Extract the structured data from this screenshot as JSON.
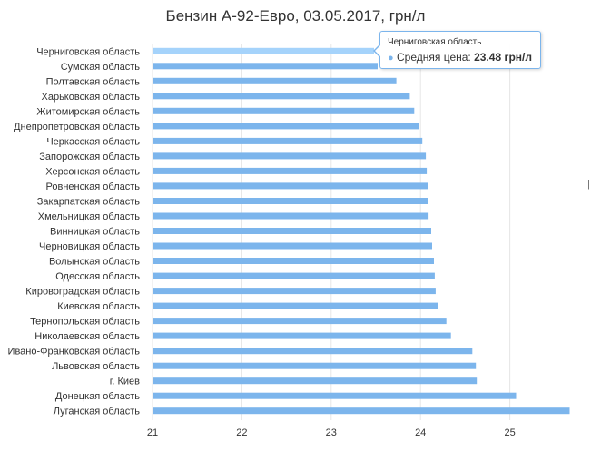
{
  "chart_data": {
    "type": "bar",
    "orientation": "horizontal",
    "title": "Бензин А-92-Евро, 03.05.2017, грн/л",
    "categories": [
      "Черниговская область",
      "Сумская область",
      "Полтавская область",
      "Харьковская область",
      "Житомирская область",
      "Днепропетровская область",
      "Черкасская область",
      "Запорожская область",
      "Херсонская область",
      "Ровненская область",
      "Закарпатская область",
      "Хмельницкая область",
      "Винницкая область",
      "Черновицкая область",
      "Волынская область",
      "Одесская область",
      "Кировоградская область",
      "Киевская область",
      "Тернопольская область",
      "Николаевская область",
      "Ивано-Франковская область",
      "Львовская область",
      "г. Киев",
      "Донецкая область",
      "Луганская область"
    ],
    "series": [
      {
        "name": "Средняя цена",
        "values": [
          23.48,
          23.52,
          23.73,
          23.88,
          23.93,
          23.98,
          24.02,
          24.06,
          24.07,
          24.08,
          24.08,
          24.09,
          24.12,
          24.13,
          24.15,
          24.16,
          24.17,
          24.2,
          24.29,
          24.34,
          24.58,
          24.62,
          24.63,
          25.07,
          25.67
        ]
      }
    ],
    "xlim": [
      21,
      25.7
    ],
    "xticks": [
      21,
      22,
      23,
      24,
      25
    ],
    "grid": true,
    "legend": "none",
    "colors": {
      "bar": "#7cb5ec",
      "bar_highlight": "#a5d3fb",
      "grid": "#e6e6e6"
    }
  },
  "tooltip": {
    "header": "Черниговская область",
    "series_label": "Средняя цена:",
    "value": "23.48 грн/л",
    "dot": "●"
  },
  "edge_mark": "|"
}
